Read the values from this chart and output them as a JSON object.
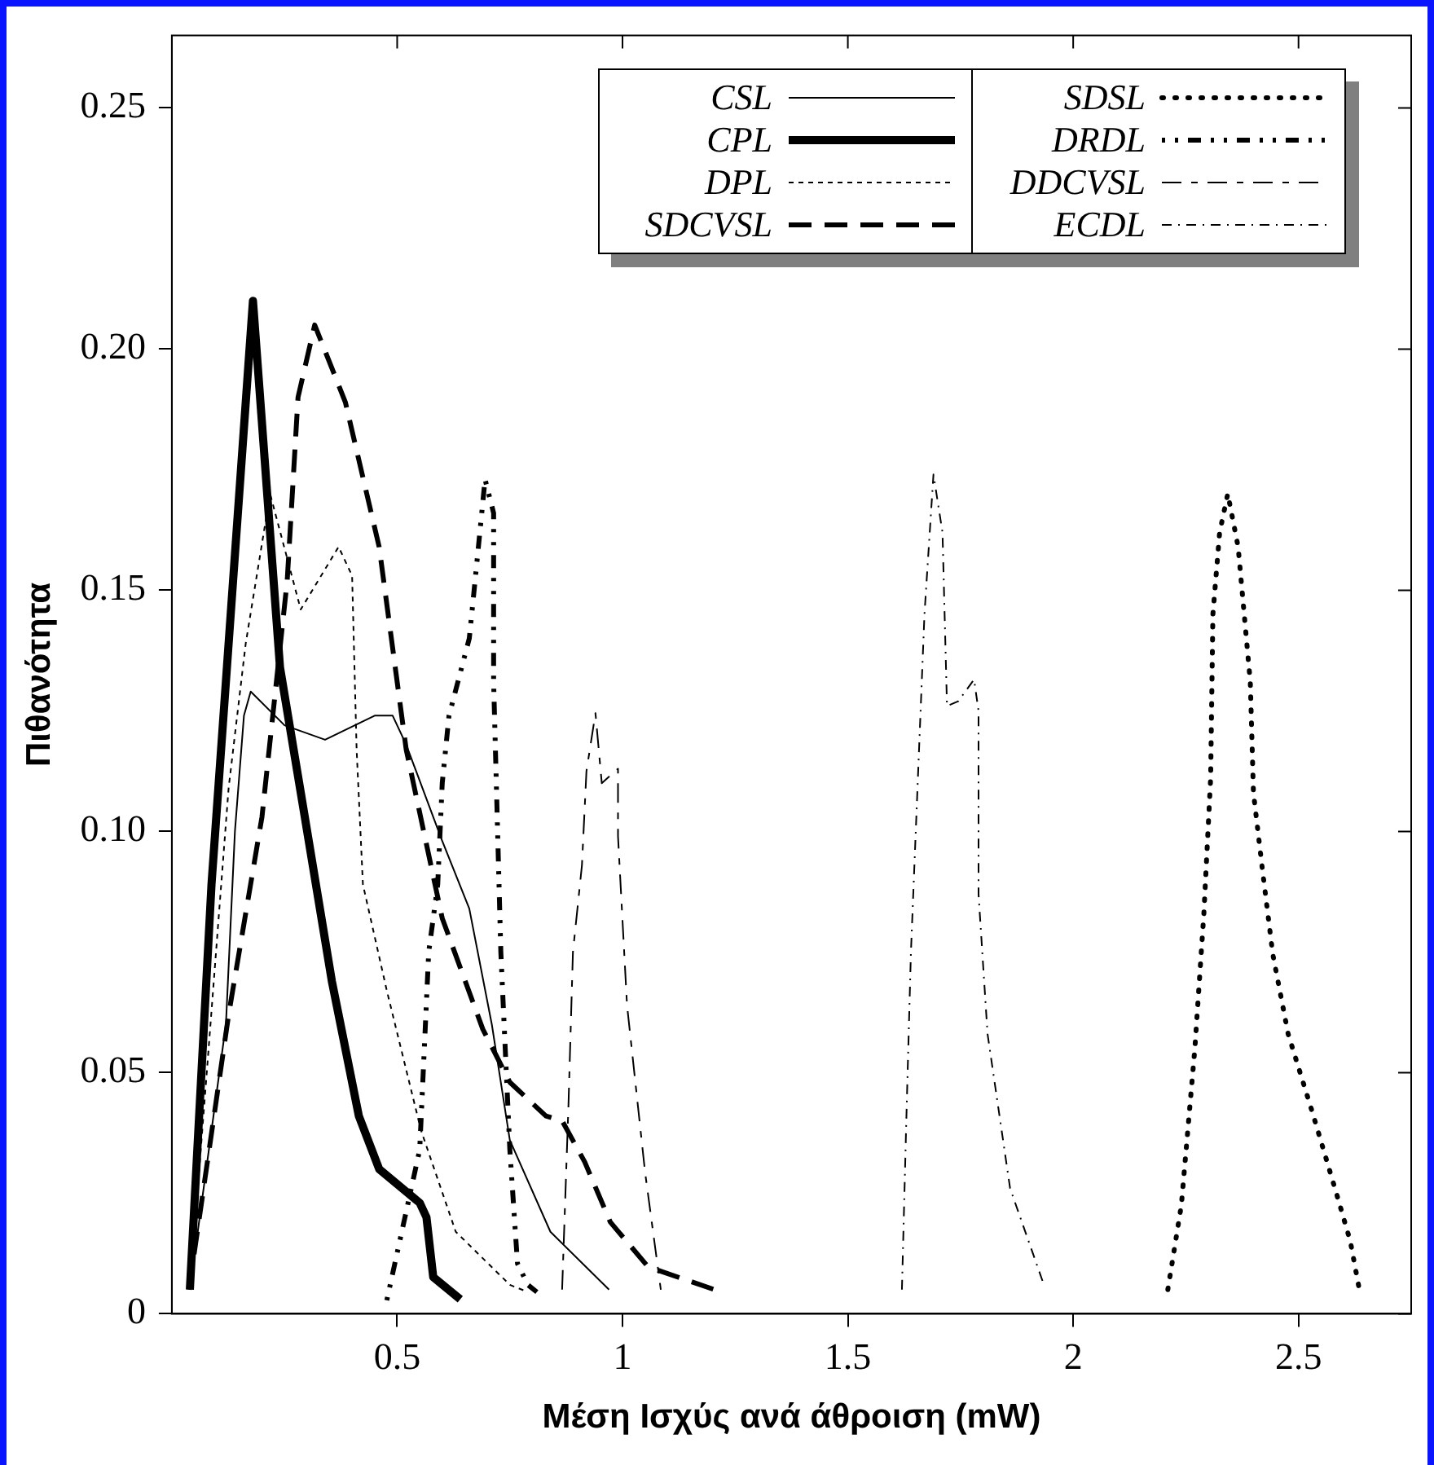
{
  "chart_data": {
    "type": "line",
    "xlabel": "Μέση Ισχύς ανά άθροιση (mW)",
    "ylabel": "Πιθανότητα",
    "xlim": [
      0,
      2.75
    ],
    "ylim": [
      0,
      0.265
    ],
    "xticks": [
      0.5,
      1,
      1.5,
      2,
      2.5
    ],
    "yticks": [
      0,
      0.05,
      {
        "value": 0.1,
        "label": "0.10"
      },
      0.15,
      {
        "value": 0.2,
        "label": "0.20"
      },
      0.25
    ],
    "grid": false,
    "legend": "top right",
    "marker": "none",
    "series": [
      {
        "name": "CSL",
        "color": "#000000",
        "line_style": "solid",
        "x": [
          0.04,
          0.12,
          0.14,
          0.16,
          0.175,
          0.25,
          0.34,
          0.45,
          0.49,
          0.52,
          0.6,
          0.66,
          0.71,
          0.75,
          0.84,
          0.97
        ],
        "values": [
          0.005,
          0.06,
          0.1,
          0.124,
          0.129,
          0.122,
          0.119,
          0.124,
          0.124,
          0.118,
          0.098,
          0.084,
          0.06,
          0.036,
          0.017,
          0.005
        ]
      },
      {
        "name": "CPL",
        "color": "#000000",
        "line_style": "solid",
        "x": [
          0.04,
          0.088,
          0.18,
          0.24,
          0.295,
          0.355,
          0.415,
          0.46,
          0.55,
          0.565,
          0.58,
          0.64
        ],
        "values": [
          0.005,
          0.089,
          0.21,
          0.134,
          0.103,
          0.069,
          0.041,
          0.03,
          0.023,
          0.02,
          0.0076,
          0.003
        ]
      },
      {
        "name": "DPL",
        "color": "#000000",
        "line_style": "dashed",
        "x": [
          0.04,
          0.08,
          0.126,
          0.164,
          0.218,
          0.286,
          0.37,
          0.4,
          0.41,
          0.424,
          0.477,
          0.553,
          0.63,
          0.75,
          0.79
        ],
        "values": [
          0.005,
          0.053,
          0.109,
          0.139,
          0.17,
          0.146,
          0.159,
          0.153,
          0.117,
          0.089,
          0.067,
          0.038,
          0.017,
          0.006,
          0.0045
        ]
      },
      {
        "name": "SDCVSL",
        "color": "#000000",
        "line_style": "dashed",
        "x": [
          0.038,
          0.126,
          0.2,
          0.256,
          0.28,
          0.317,
          0.385,
          0.46,
          0.52,
          0.6,
          0.69,
          0.75,
          0.83,
          0.866,
          0.916,
          0.973,
          1.057,
          1.22
        ],
        "values": [
          0.005,
          0.062,
          0.103,
          0.152,
          0.19,
          0.205,
          0.189,
          0.159,
          0.117,
          0.082,
          0.059,
          0.048,
          0.041,
          0.04,
          0.0315,
          0.019,
          0.0097,
          0.0045
        ]
      },
      {
        "name": "SDSL",
        "color": "#000000",
        "line_style": "dotted",
        "x": [
          2.21,
          2.24,
          2.27,
          2.29,
          2.305,
          2.31,
          2.325,
          2.343,
          2.366,
          2.393,
          2.4,
          2.42,
          2.443,
          2.477,
          2.53,
          2.584,
          2.615,
          2.634
        ],
        "values": [
          0.005,
          0.0225,
          0.055,
          0.083,
          0.111,
          0.145,
          0.162,
          0.17,
          0.159,
          0.131,
          0.108,
          0.092,
          0.0745,
          0.058,
          0.042,
          0.025,
          0.015,
          0.0055
        ]
      },
      {
        "name": "DRDL",
        "color": "#000000",
        "line_style": "dashed",
        "x": [
          0.477,
          0.55,
          0.57,
          0.59,
          0.6,
          0.615,
          0.66,
          0.675,
          0.695,
          0.714,
          0.714,
          0.73,
          0.75,
          0.767,
          0.79,
          0.81
        ],
        "values": [
          0.0028,
          0.034,
          0.075,
          0.089,
          0.11,
          0.124,
          0.14,
          0.154,
          0.173,
          0.166,
          0.131,
          0.075,
          0.034,
          0.0104,
          0.006,
          0.0045
        ]
      },
      {
        "name": "DDCVSL",
        "color": "#000000",
        "line_style": "dashed",
        "x": [
          0.866,
          0.88,
          0.89,
          0.91,
          0.92,
          0.94,
          0.954,
          0.99,
          0.99,
          1.01,
          1.05,
          1.085
        ],
        "values": [
          0.005,
          0.043,
          0.075,
          0.093,
          0.1125,
          0.1245,
          0.11,
          0.113,
          0.099,
          0.064,
          0.0294,
          0.005
        ]
      },
      {
        "name": "ECDL",
        "color": "#000000",
        "line_style": "dashed",
        "x": [
          1.62,
          1.63,
          1.64,
          1.655,
          1.67,
          1.69,
          1.71,
          1.72,
          1.745,
          1.78,
          1.79,
          1.79,
          1.81,
          1.86,
          1.935
        ],
        "values": [
          0.005,
          0.041,
          0.075,
          0.11,
          0.145,
          0.174,
          0.162,
          0.126,
          0.127,
          0.1315,
          0.125,
          0.087,
          0.058,
          0.026,
          0.006
        ]
      }
    ]
  }
}
